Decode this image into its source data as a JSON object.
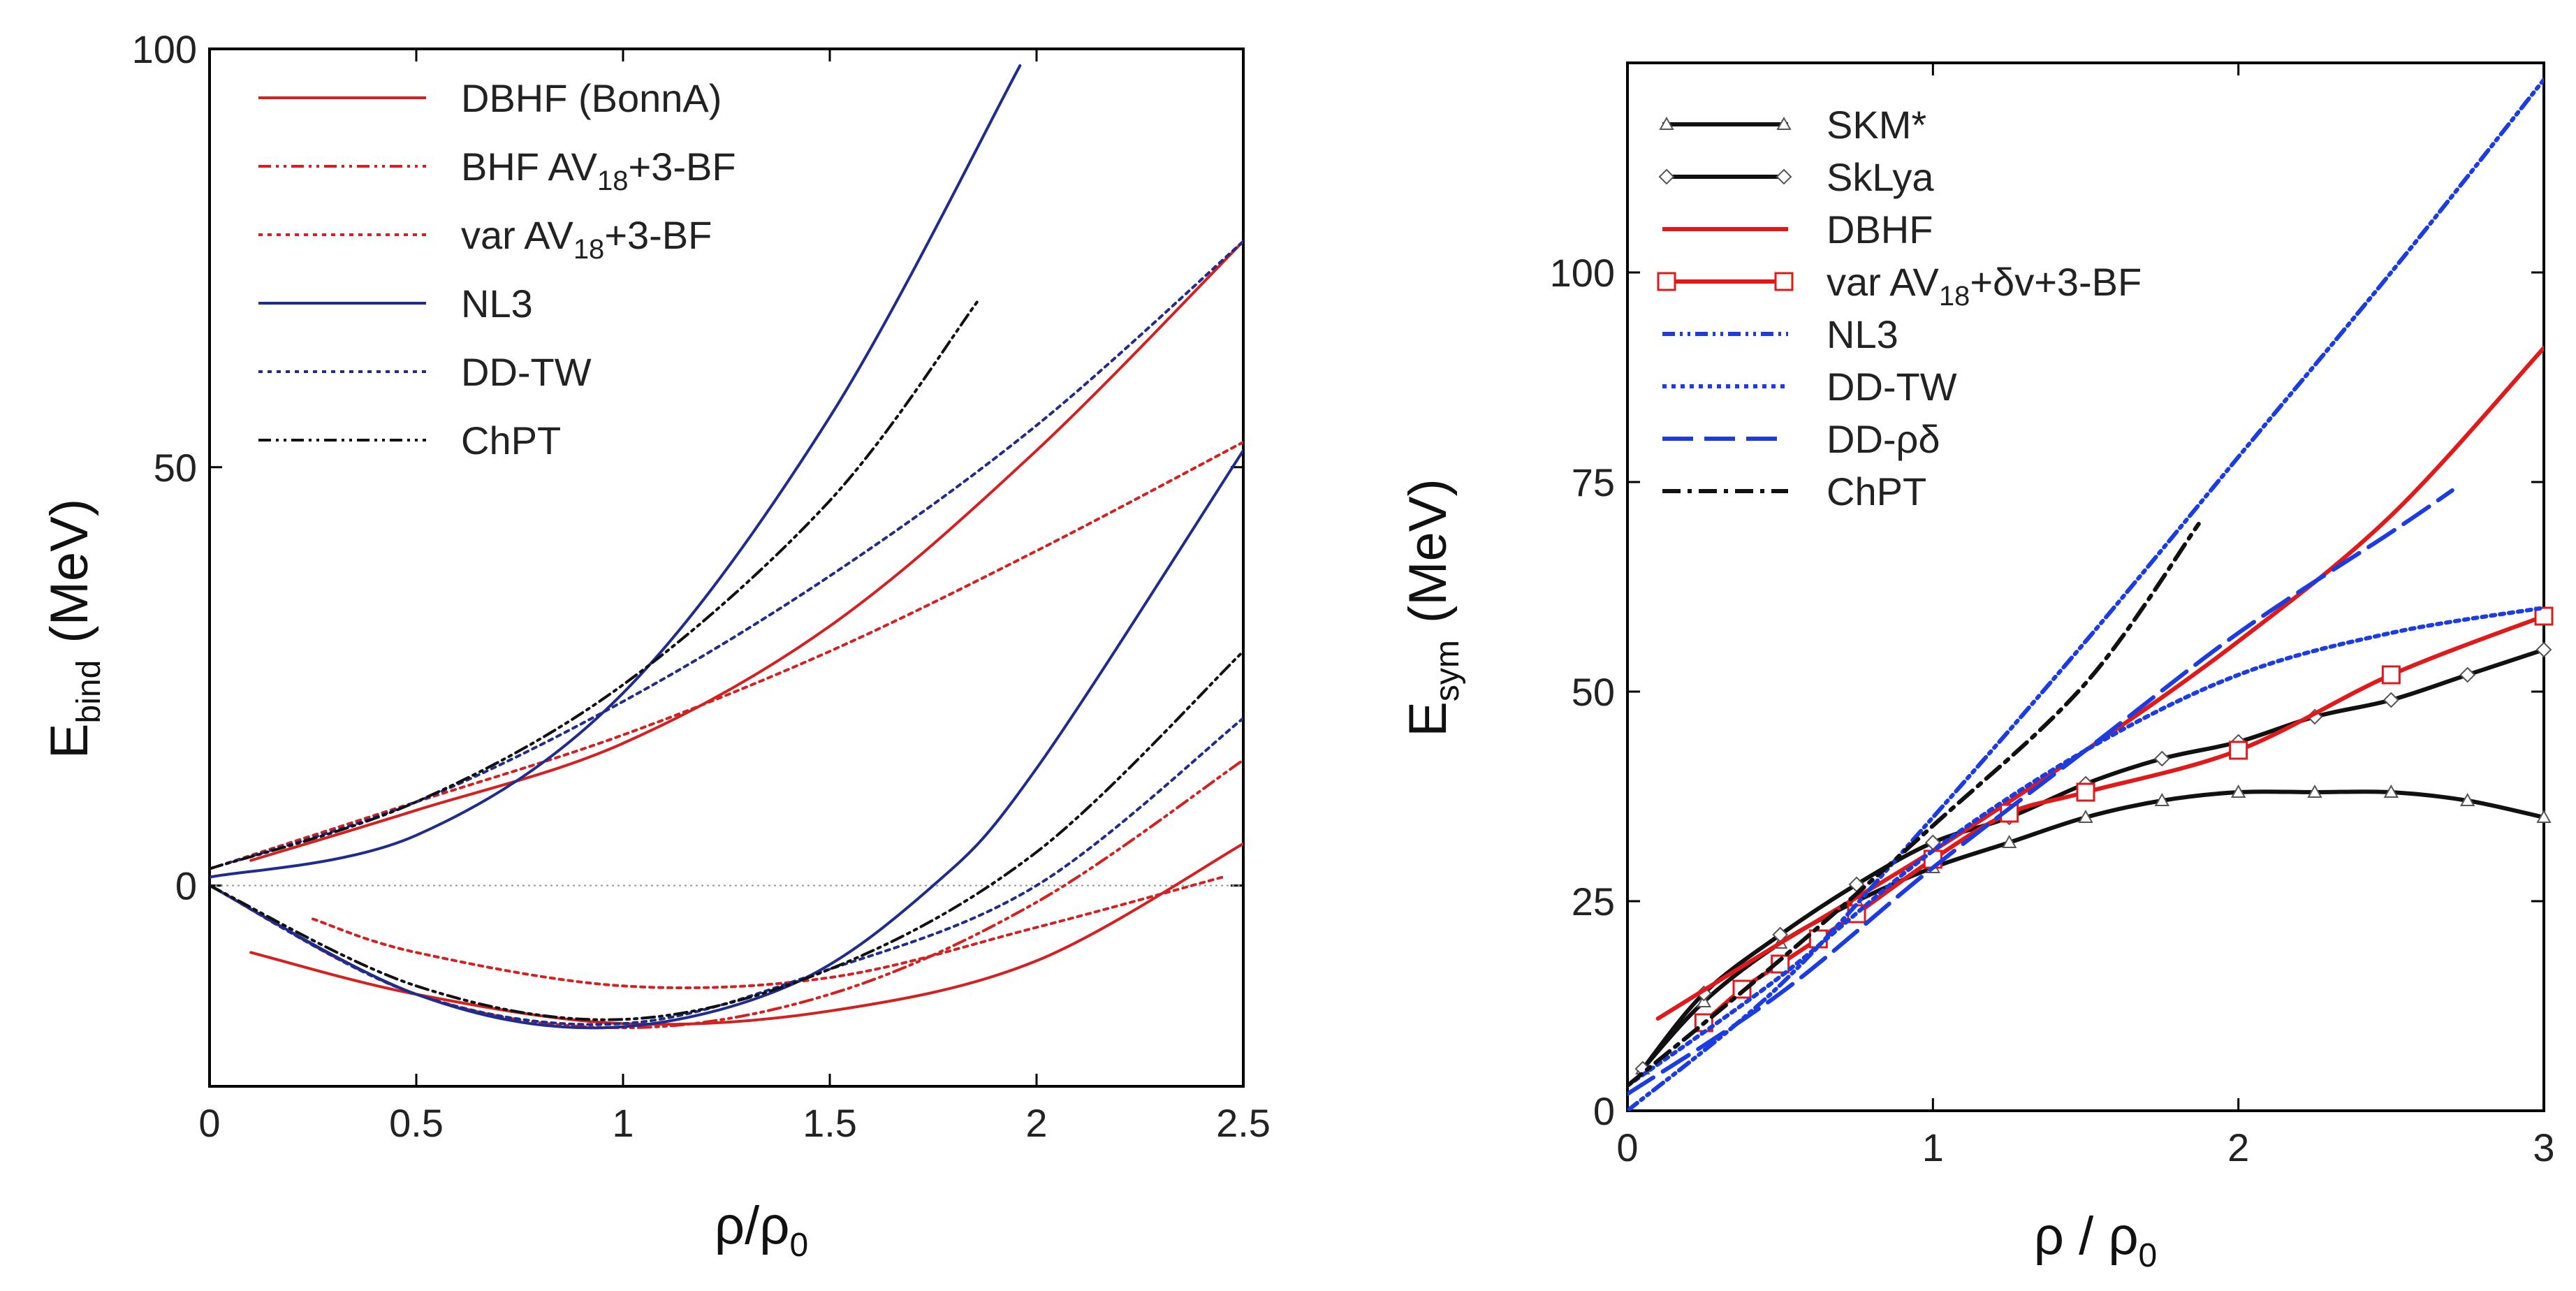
{
  "chart_data": [
    {
      "type": "line",
      "panel": "left",
      "xlabel": "ρ/ρ",
      "xlabel_sub": "0",
      "ylabel": "E",
      "ylabel_sub": "bind",
      "ylabel_unit": "(MeV)",
      "xlim": [
        0,
        2.5
      ],
      "ylim": [
        -24,
        100
      ],
      "xticks": [
        0,
        0.5,
        1,
        1.5,
        2,
        2.5
      ],
      "xtick_labels": [
        "0",
        "0.5",
        "1",
        "1.5",
        "2",
        "2.5"
      ],
      "yticks": [
        0,
        50,
        100
      ],
      "ytick_labels": [
        "0",
        "50",
        "100"
      ],
      "zero_line": true,
      "legend": [
        {
          "label": "DBHF (BonnA)",
          "color": "#d42020",
          "dash": "solid"
        },
        {
          "label": "BHF AV",
          "sub": "18",
          "suffix": "+3-BF",
          "color": "#d42020",
          "dash": "dashdotdot"
        },
        {
          "label": "var AV",
          "sub": "18",
          "suffix": "+3-BF",
          "color": "#d42020",
          "dash": "dotted"
        },
        {
          "label": "NL3",
          "color": "#1f2c8c",
          "dash": "solid"
        },
        {
          "label": "DD-TW",
          "color": "#1f2c8c",
          "dash": "dotted"
        },
        {
          "label": "ChPT",
          "color": "#111111",
          "dash": "dashdotdot"
        }
      ],
      "series": [
        {
          "name": "DBHF (BonnA) neutron matter",
          "color": "#d42020",
          "dash": "solid",
          "x": [
            0.1,
            0.5,
            1.0,
            1.5,
            2.0,
            2.5
          ],
          "y": [
            3,
            9,
            17,
            31,
            52,
            77
          ]
        },
        {
          "name": "DBHF (BonnA) nuclear matter",
          "color": "#d42020",
          "dash": "solid",
          "x": [
            0.1,
            0.5,
            1.0,
            1.5,
            2.0,
            2.5
          ],
          "y": [
            -8,
            -13,
            -16.5,
            -15,
            -9,
            5
          ]
        },
        {
          "name": "var AV18+3-BF neutron matter",
          "color": "#d42020",
          "dash": "dotted",
          "x": [
            0,
            0.5,
            1.0,
            1.5,
            2.0,
            2.5
          ],
          "y": [
            2,
            10,
            18,
            28,
            40,
            53
          ]
        },
        {
          "name": "var AV18+3-BF nuclear matter",
          "color": "#d42020",
          "dash": "dotted",
          "x": [
            0.25,
            0.5,
            1.0,
            1.5,
            2.0,
            2.45
          ],
          "y": [
            -4,
            -8,
            -12,
            -11,
            -5,
            1
          ]
        },
        {
          "name": "BHF AV18+3-BF nuclear matter",
          "color": "#d42020",
          "dash": "dashdotdot",
          "x": [
            0,
            0.5,
            1.0,
            1.5,
            2.0,
            2.5
          ],
          "y": [
            0,
            -13,
            -17,
            -13,
            -2,
            15
          ]
        },
        {
          "name": "NL3 neutron matter",
          "color": "#1f2c8c",
          "dash": "solid",
          "x": [
            0,
            0.5,
            1.0,
            1.5,
            1.96
          ],
          "y": [
            1,
            6,
            23,
            56,
            98
          ]
        },
        {
          "name": "NL3 nuclear matter",
          "color": "#1f2c8c",
          "dash": "solid",
          "x": [
            0,
            0.5,
            0.95,
            1.4,
            1.75,
            2.0,
            2.5
          ],
          "y": [
            0,
            -13,
            -17,
            -12,
            0,
            14,
            52
          ]
        },
        {
          "name": "DD-TW neutron matter",
          "color": "#1f2c8c",
          "dash": "dotted",
          "x": [
            0,
            0.5,
            1.0,
            1.5,
            2.0,
            2.5
          ],
          "y": [
            2,
            10,
            22,
            37,
            55,
            77
          ]
        },
        {
          "name": "DD-TW nuclear matter",
          "color": "#1f2c8c",
          "dash": "dotted",
          "x": [
            0,
            0.5,
            1.0,
            1.5,
            2.0,
            2.5
          ],
          "y": [
            0,
            -13,
            -16.5,
            -10,
            0,
            20
          ]
        },
        {
          "name": "ChPT neutron matter",
          "color": "#111111",
          "dash": "dashdotdot",
          "x": [
            0,
            0.5,
            1.0,
            1.5,
            1.86
          ],
          "y": [
            2,
            10,
            24,
            46,
            70
          ]
        },
        {
          "name": "ChPT nuclear matter",
          "color": "#111111",
          "dash": "dashdotdot",
          "x": [
            0,
            0.5,
            1.0,
            1.5,
            2.0,
            2.5
          ],
          "y": [
            0,
            -12,
            -16,
            -10,
            4,
            28
          ]
        }
      ]
    },
    {
      "type": "line",
      "panel": "right",
      "xlabel": "ρ / ρ",
      "xlabel_sub": "0",
      "ylabel": "E",
      "ylabel_sub": "sym",
      "ylabel_unit": "(MeV)",
      "xlim": [
        0,
        3
      ],
      "ylim": [
        0,
        125
      ],
      "xticks": [
        0,
        1,
        2,
        3
      ],
      "xtick_labels": [
        "0",
        "1",
        "2",
        "3"
      ],
      "yticks": [
        0,
        25,
        50,
        75,
        100
      ],
      "ytick_labels": [
        "0",
        "25",
        "50",
        "75",
        "100"
      ],
      "legend": [
        {
          "label": "SKM*",
          "color": "#111111",
          "dash": "solid",
          "marker": "triangle"
        },
        {
          "label": "SkLya",
          "color": "#111111",
          "dash": "solid",
          "marker": "diamond"
        },
        {
          "label": "DBHF",
          "color": "#e01a1a",
          "dash": "solid"
        },
        {
          "label": "var AV",
          "sub": "18",
          "suffix": "+δv+3-BF",
          "color": "#e01a1a",
          "dash": "solid",
          "marker": "square"
        },
        {
          "label": "NL3",
          "color": "#1a3ce0",
          "dash": "dashdotdot"
        },
        {
          "label": "DD-TW",
          "color": "#1a3ce0",
          "dash": "dotted"
        },
        {
          "label": "DD-ρδ",
          "color": "#1a3ce0",
          "dash": "longdash"
        },
        {
          "label": "ChPT",
          "color": "#111111",
          "dash": "dashdot"
        }
      ],
      "series": [
        {
          "name": "SKM*",
          "color": "#111111",
          "dash": "solid",
          "marker": "triangle",
          "x": [
            0.05,
            0.25,
            0.5,
            0.75,
            1.0,
            1.25,
            1.5,
            1.75,
            2.0,
            2.25,
            2.5,
            2.75,
            3.0
          ],
          "y": [
            5,
            13,
            20,
            25,
            29,
            32,
            35,
            37,
            38,
            38,
            38,
            37,
            35
          ]
        },
        {
          "name": "SkLya",
          "color": "#111111",
          "dash": "solid",
          "marker": "diamond",
          "x": [
            0.05,
            0.25,
            0.5,
            0.75,
            1.0,
            1.25,
            1.5,
            1.75,
            2.0,
            2.25,
            2.5,
            2.75,
            3.0
          ],
          "y": [
            5,
            14,
            21,
            27,
            32,
            35,
            39,
            42,
            44,
            47,
            49,
            52,
            55
          ]
        },
        {
          "name": "DBHF",
          "color": "#e01a1a",
          "dash": "solid",
          "x": [
            0.1,
            0.5,
            1.0,
            1.5,
            2.0,
            2.5,
            3.0
          ],
          "y": [
            11,
            20,
            31,
            43,
            56,
            71,
            91
          ]
        },
        {
          "name": "var AV18+δv+3-BF",
          "color": "#e01a1a",
          "dash": "solid",
          "marker": "square",
          "x": [
            0.25,
            0.375,
            0.5,
            0.625,
            0.75,
            1.0,
            1.25,
            1.5,
            2.0,
            2.5,
            3.0
          ],
          "y": [
            10.5,
            14.5,
            17.5,
            20.5,
            23.5,
            30,
            35.5,
            38,
            43,
            52,
            59
          ]
        },
        {
          "name": "NL3",
          "color": "#1a3ce0",
          "dash": "dashdotdot",
          "x": [
            0,
            0.5,
            1.0,
            1.5,
            2.0,
            2.5,
            3.0
          ],
          "y": [
            0,
            15,
            35,
            56,
            78,
            100,
            123
          ]
        },
        {
          "name": "DD-TW",
          "color": "#1a3ce0",
          "dash": "dotted",
          "x": [
            0,
            0.5,
            1.0,
            1.5,
            2.0,
            2.5,
            3.0
          ],
          "y": [
            3,
            16,
            31,
            43,
            52,
            57,
            60
          ]
        },
        {
          "name": "DD-ρδ",
          "color": "#1a3ce0",
          "dash": "longdash",
          "x": [
            0,
            0.5,
            1.0,
            1.5,
            2.0,
            2.5,
            2.7
          ],
          "y": [
            2,
            14,
            29,
            43,
            57,
            69,
            74
          ]
        },
        {
          "name": "ChPT",
          "color": "#111111",
          "dash": "dashdot",
          "x": [
            0,
            0.5,
            1.0,
            1.5,
            1.87
          ],
          "y": [
            3,
            18,
            34,
            51,
            70
          ]
        }
      ]
    }
  ]
}
